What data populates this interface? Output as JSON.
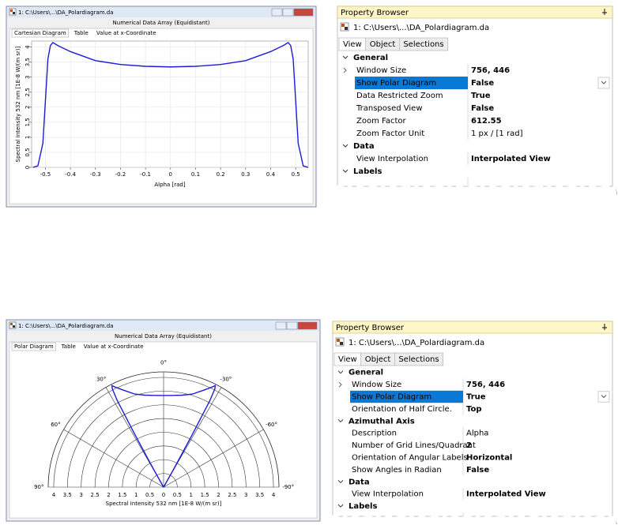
{
  "windows": [
    {
      "title": "1: C:\\Users\\...\\DA_Polardiagram.da",
      "subtitle": "Numerical Data Array (Equidistant)",
      "tabs": [
        "Cartesian Diagram",
        "Table",
        "Value at x-Coordinate"
      ],
      "chart_data": {
        "type": "line",
        "x_label": "Alpha [rad]",
        "y_label": "Spectral Intensity 532 nm [1E-8 W/(m sr)]",
        "x": [
          -0.55,
          -0.53,
          -0.51,
          -0.5,
          -0.49,
          -0.48,
          -0.47,
          -0.45,
          -0.4,
          -0.3,
          -0.2,
          -0.1,
          0,
          0.1,
          0.2,
          0.3,
          0.4,
          0.45,
          0.47,
          0.48,
          0.49,
          0.5,
          0.51,
          0.53,
          0.55
        ],
        "series": [
          {
            "color": "#1c1cd6",
            "values": [
              0,
              0.05,
              0.8,
              2.2,
              3.6,
              4.05,
              4.15,
              4.05,
              3.85,
              3.55,
              3.42,
              3.36,
              3.34,
              3.36,
              3.42,
              3.55,
              3.85,
              4.05,
              4.15,
              4.05,
              3.6,
              2.2,
              0.8,
              0.05,
              0
            ]
          }
        ],
        "xlim": [
          -0.555,
          0.55
        ],
        "ylim": [
          0,
          4.2
        ],
        "xticks": [
          -0.5,
          -0.4,
          -0.3,
          -0.2,
          -0.1,
          0,
          0.1,
          0.2,
          0.3,
          0.4,
          0.5
        ],
        "yticks": [
          0,
          0.5,
          1,
          1.5,
          2,
          2.5,
          3,
          3.5,
          4
        ],
        "grid": true
      }
    },
    {
      "title": "1: C:\\Users\\...\\DA_Polardiagram.da",
      "subtitle": "Numerical Data Array (Equidistant)",
      "tabs": [
        "Polar Diagram",
        "Table",
        "Value at x-Coordinate"
      ],
      "chart_data": {
        "type": "polar",
        "r_label": "Spectral Intensity 532 nm [1E-8 W/(m sr)]",
        "theta": [
          -31.5,
          -30.4,
          -29.2,
          -28.6,
          -28.1,
          -27.5,
          -26.9,
          -25.8,
          -22.9,
          -17.2,
          -11.5,
          -5.7,
          0,
          5.7,
          11.5,
          17.2,
          22.9,
          25.8,
          26.9,
          27.5,
          28.1,
          28.6,
          29.2,
          30.4,
          31.5
        ],
        "series": [
          {
            "color": "#1c1cd6",
            "values": [
              0,
              0.05,
              0.8,
              2.2,
              3.6,
              4.05,
              4.15,
              4.05,
              3.85,
              3.55,
              3.42,
              3.36,
              3.34,
              3.36,
              3.42,
              3.55,
              3.85,
              4.05,
              4.15,
              4.05,
              3.6,
              2.2,
              0.8,
              0.05,
              0
            ]
          }
        ],
        "rlim": [
          0,
          4.2
        ],
        "rticks": [
          0,
          0.5,
          1,
          1.5,
          2,
          2.5,
          3,
          3.5,
          4
        ],
        "thetaticks": [
          {
            "value": 0,
            "label": "0°"
          },
          {
            "value": 30,
            "label": "30°"
          },
          {
            "value": -30,
            "label": "-30°"
          },
          {
            "value": 60,
            "label": "60°"
          },
          {
            "value": -60,
            "label": "-60°"
          },
          {
            "value": 90,
            "label": "90°"
          },
          {
            "value": -90,
            "label": "-90°"
          }
        ]
      }
    }
  ],
  "property_browsers": [
    {
      "title": "Property Browser",
      "file": "1: C:\\Users\\...\\DA_Polardiagram.da",
      "tabs": [
        "View",
        "Object",
        "Selections"
      ],
      "sections": [
        {
          "title": "General",
          "rows": [
            {
              "name": "Window Size",
              "value": "756, 446",
              "expandable": true
            },
            {
              "name": "Show Polar Diagram",
              "value": "False",
              "selected": true
            },
            {
              "name": "Data Restricted Zoom",
              "value": "True"
            },
            {
              "name": "Transposed View",
              "value": "False"
            },
            {
              "name": "Zoom Factor",
              "value": "612.55"
            },
            {
              "name": "Zoom Factor Unit",
              "value": "1 px / [1 rad]",
              "enabled": false
            }
          ]
        },
        {
          "title": "Data",
          "rows": [
            {
              "name": "View Interpolation",
              "value": "Interpolated View"
            }
          ]
        },
        {
          "title": "Labels",
          "rows": []
        }
      ]
    },
    {
      "title": "Property Browser",
      "file": "1: C:\\Users\\...\\DA_Polardiagram.da",
      "tabs": [
        "View",
        "Object",
        "Selections"
      ],
      "sections": [
        {
          "title": "General",
          "rows": [
            {
              "name": "Window Size",
              "value": "756, 446",
              "expandable": true
            },
            {
              "name": "Show Polar Diagram",
              "value": "True",
              "selected": true
            },
            {
              "name": "Orientation of Half Circle.",
              "value": "Top"
            }
          ]
        },
        {
          "title": "Azimuthal Axis",
          "rows": [
            {
              "name": "Description",
              "value": "Alpha",
              "enabled": false
            },
            {
              "name": "Number of Grid Lines/Quadrant",
              "value": "2"
            },
            {
              "name": "Orientation of Angular Labels",
              "value": "Horizontal"
            },
            {
              "name": "Show Angles in Radian",
              "value": "False"
            }
          ]
        },
        {
          "title": "Data",
          "rows": [
            {
              "name": "View Interpolation",
              "value": "Interpolated View"
            }
          ]
        },
        {
          "title": "Labels",
          "rows": []
        }
      ]
    }
  ]
}
